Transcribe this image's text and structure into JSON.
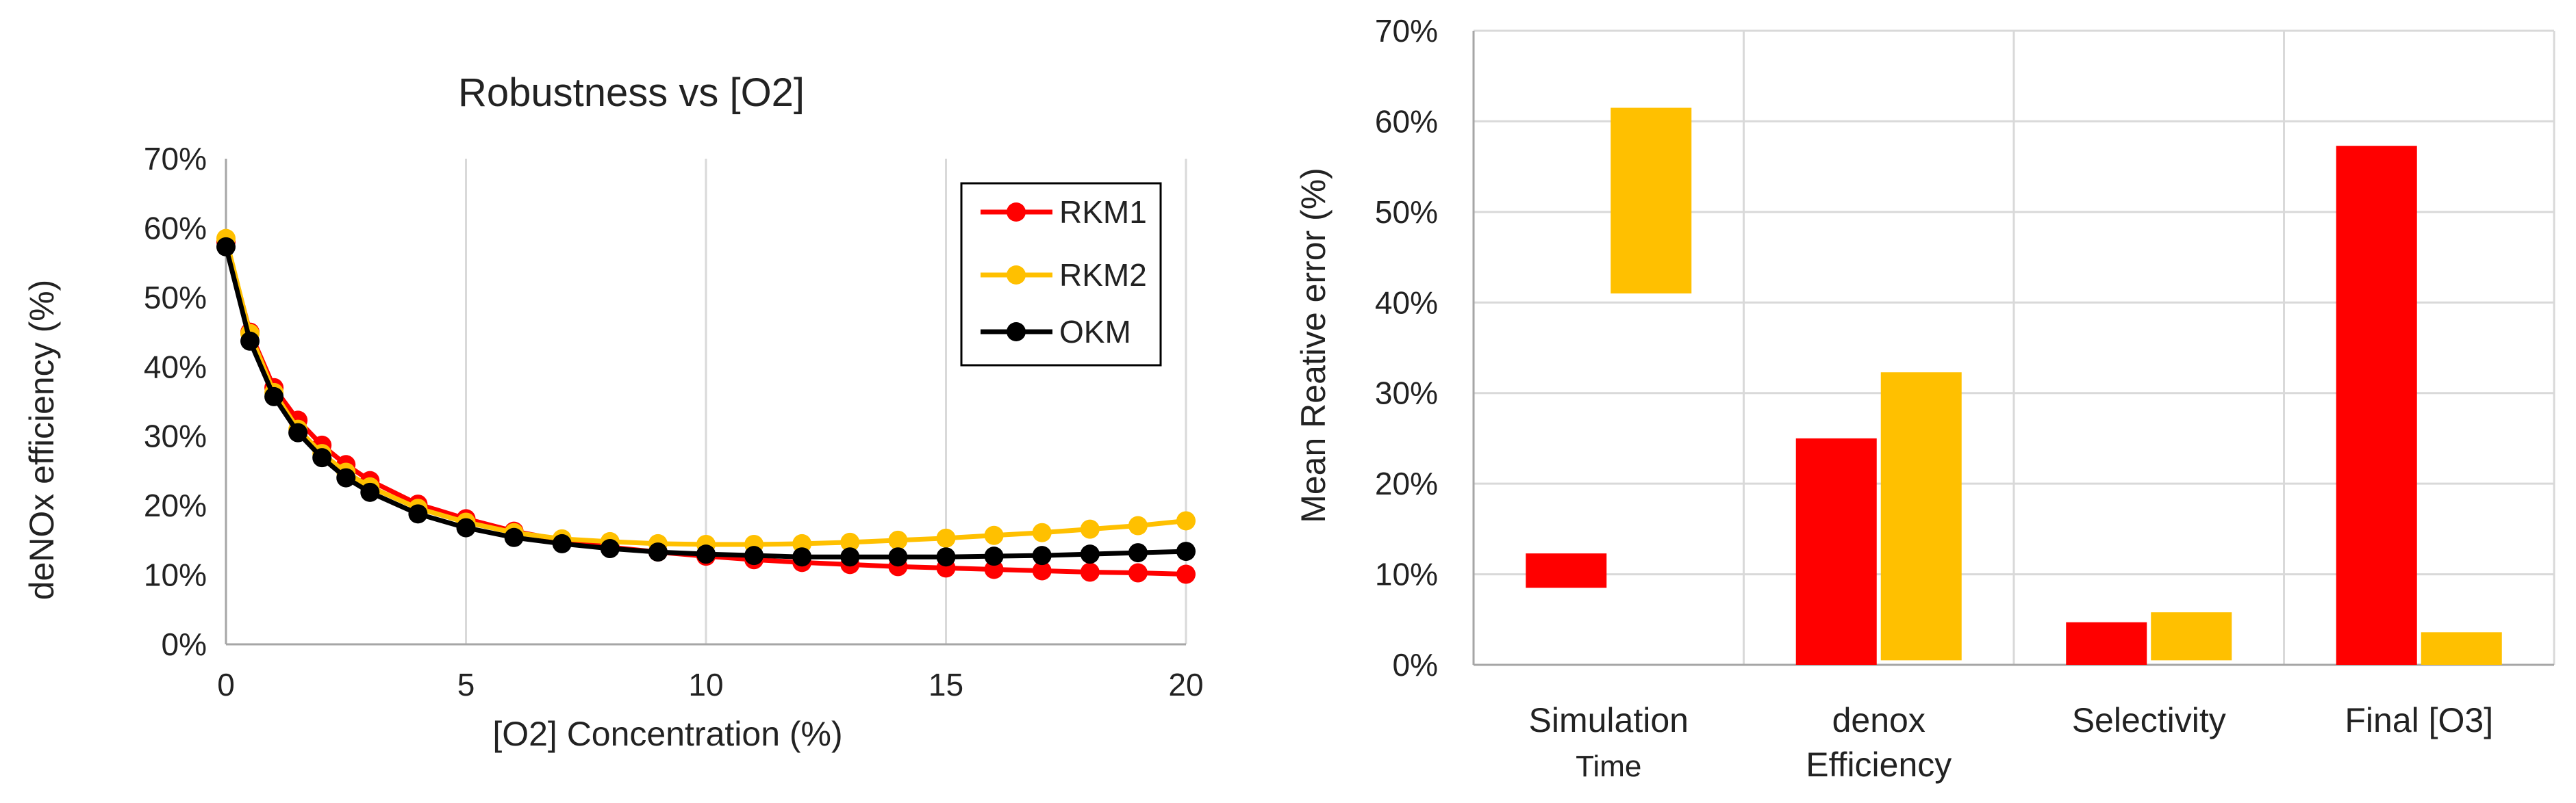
{
  "chart_data": [
    {
      "type": "line",
      "title": "Robustness vs [O2]",
      "xlabel": "[O2] Concentration (%)",
      "ylabel": "deNOx efficiency (%)",
      "xlim": [
        0,
        20
      ],
      "ylim": [
        0,
        70
      ],
      "xticks": [
        "0",
        "5",
        "10",
        "15",
        "20"
      ],
      "yticks": [
        "0%",
        "10%",
        "20%",
        "30%",
        "40%",
        "50%",
        "60%",
        "70%"
      ],
      "legend_position": "top-right",
      "grid": "vertical",
      "x": [
        0,
        0.5,
        1,
        1.5,
        2,
        2.5,
        3,
        4,
        5,
        6,
        7,
        8,
        9,
        10,
        11,
        12,
        13,
        14,
        15,
        16,
        17,
        18,
        19,
        20
      ],
      "series": [
        {
          "name": "RKM1",
          "color": "#ff0000",
          "values": [
            58,
            45,
            37,
            32.3,
            28.7,
            25.9,
            23.6,
            20.2,
            18.1,
            16.3,
            15.0,
            14.0,
            13.3,
            12.7,
            12.2,
            11.8,
            11.5,
            11.2,
            11.0,
            10.8,
            10.6,
            10.4,
            10.3,
            10.1
          ]
        },
        {
          "name": "RKM2",
          "color": "#ffc000",
          "values": [
            58.5,
            44.8,
            36.3,
            31.0,
            27.5,
            24.8,
            22.7,
            19.6,
            17.6,
            16.1,
            15.2,
            14.8,
            14.5,
            14.4,
            14.4,
            14.5,
            14.7,
            15.0,
            15.3,
            15.7,
            16.1,
            16.6,
            17.1,
            17.8
          ]
        },
        {
          "name": "OKM",
          "color": "#000000",
          "values": [
            57.3,
            43.7,
            35.7,
            30.5,
            26.9,
            24.0,
            21.9,
            18.8,
            16.8,
            15.4,
            14.5,
            13.8,
            13.3,
            13.0,
            12.8,
            12.6,
            12.6,
            12.6,
            12.6,
            12.7,
            12.8,
            13.0,
            13.2,
            13.4
          ]
        }
      ]
    },
    {
      "type": "bar",
      "title": "",
      "xlabel": "",
      "ylabel": "Mean Reative error (%)",
      "ylim": [
        0,
        70
      ],
      "yticks": [
        "0%",
        "10%",
        "20%",
        "30%",
        "40%",
        "50%",
        "60%",
        "70%"
      ],
      "categories": [
        [
          "Simulation",
          "Time"
        ],
        [
          "denox",
          "Efficiency"
        ],
        [
          "Selectivity"
        ],
        [
          "Final [O3]"
        ]
      ],
      "series": [
        {
          "name": "RKM1",
          "color": "#ff0000",
          "floating": [
            [
              8.5,
              12.3
            ],
            [
              0,
              25.0
            ],
            [
              0,
              4.7
            ],
            [
              0,
              57.3
            ]
          ]
        },
        {
          "name": "RKM2",
          "color": "#ffc000",
          "floating": [
            [
              41.0,
              61.5
            ],
            [
              0.5,
              32.3
            ],
            [
              0.5,
              5.8
            ],
            [
              0,
              3.6
            ]
          ]
        }
      ]
    }
  ]
}
